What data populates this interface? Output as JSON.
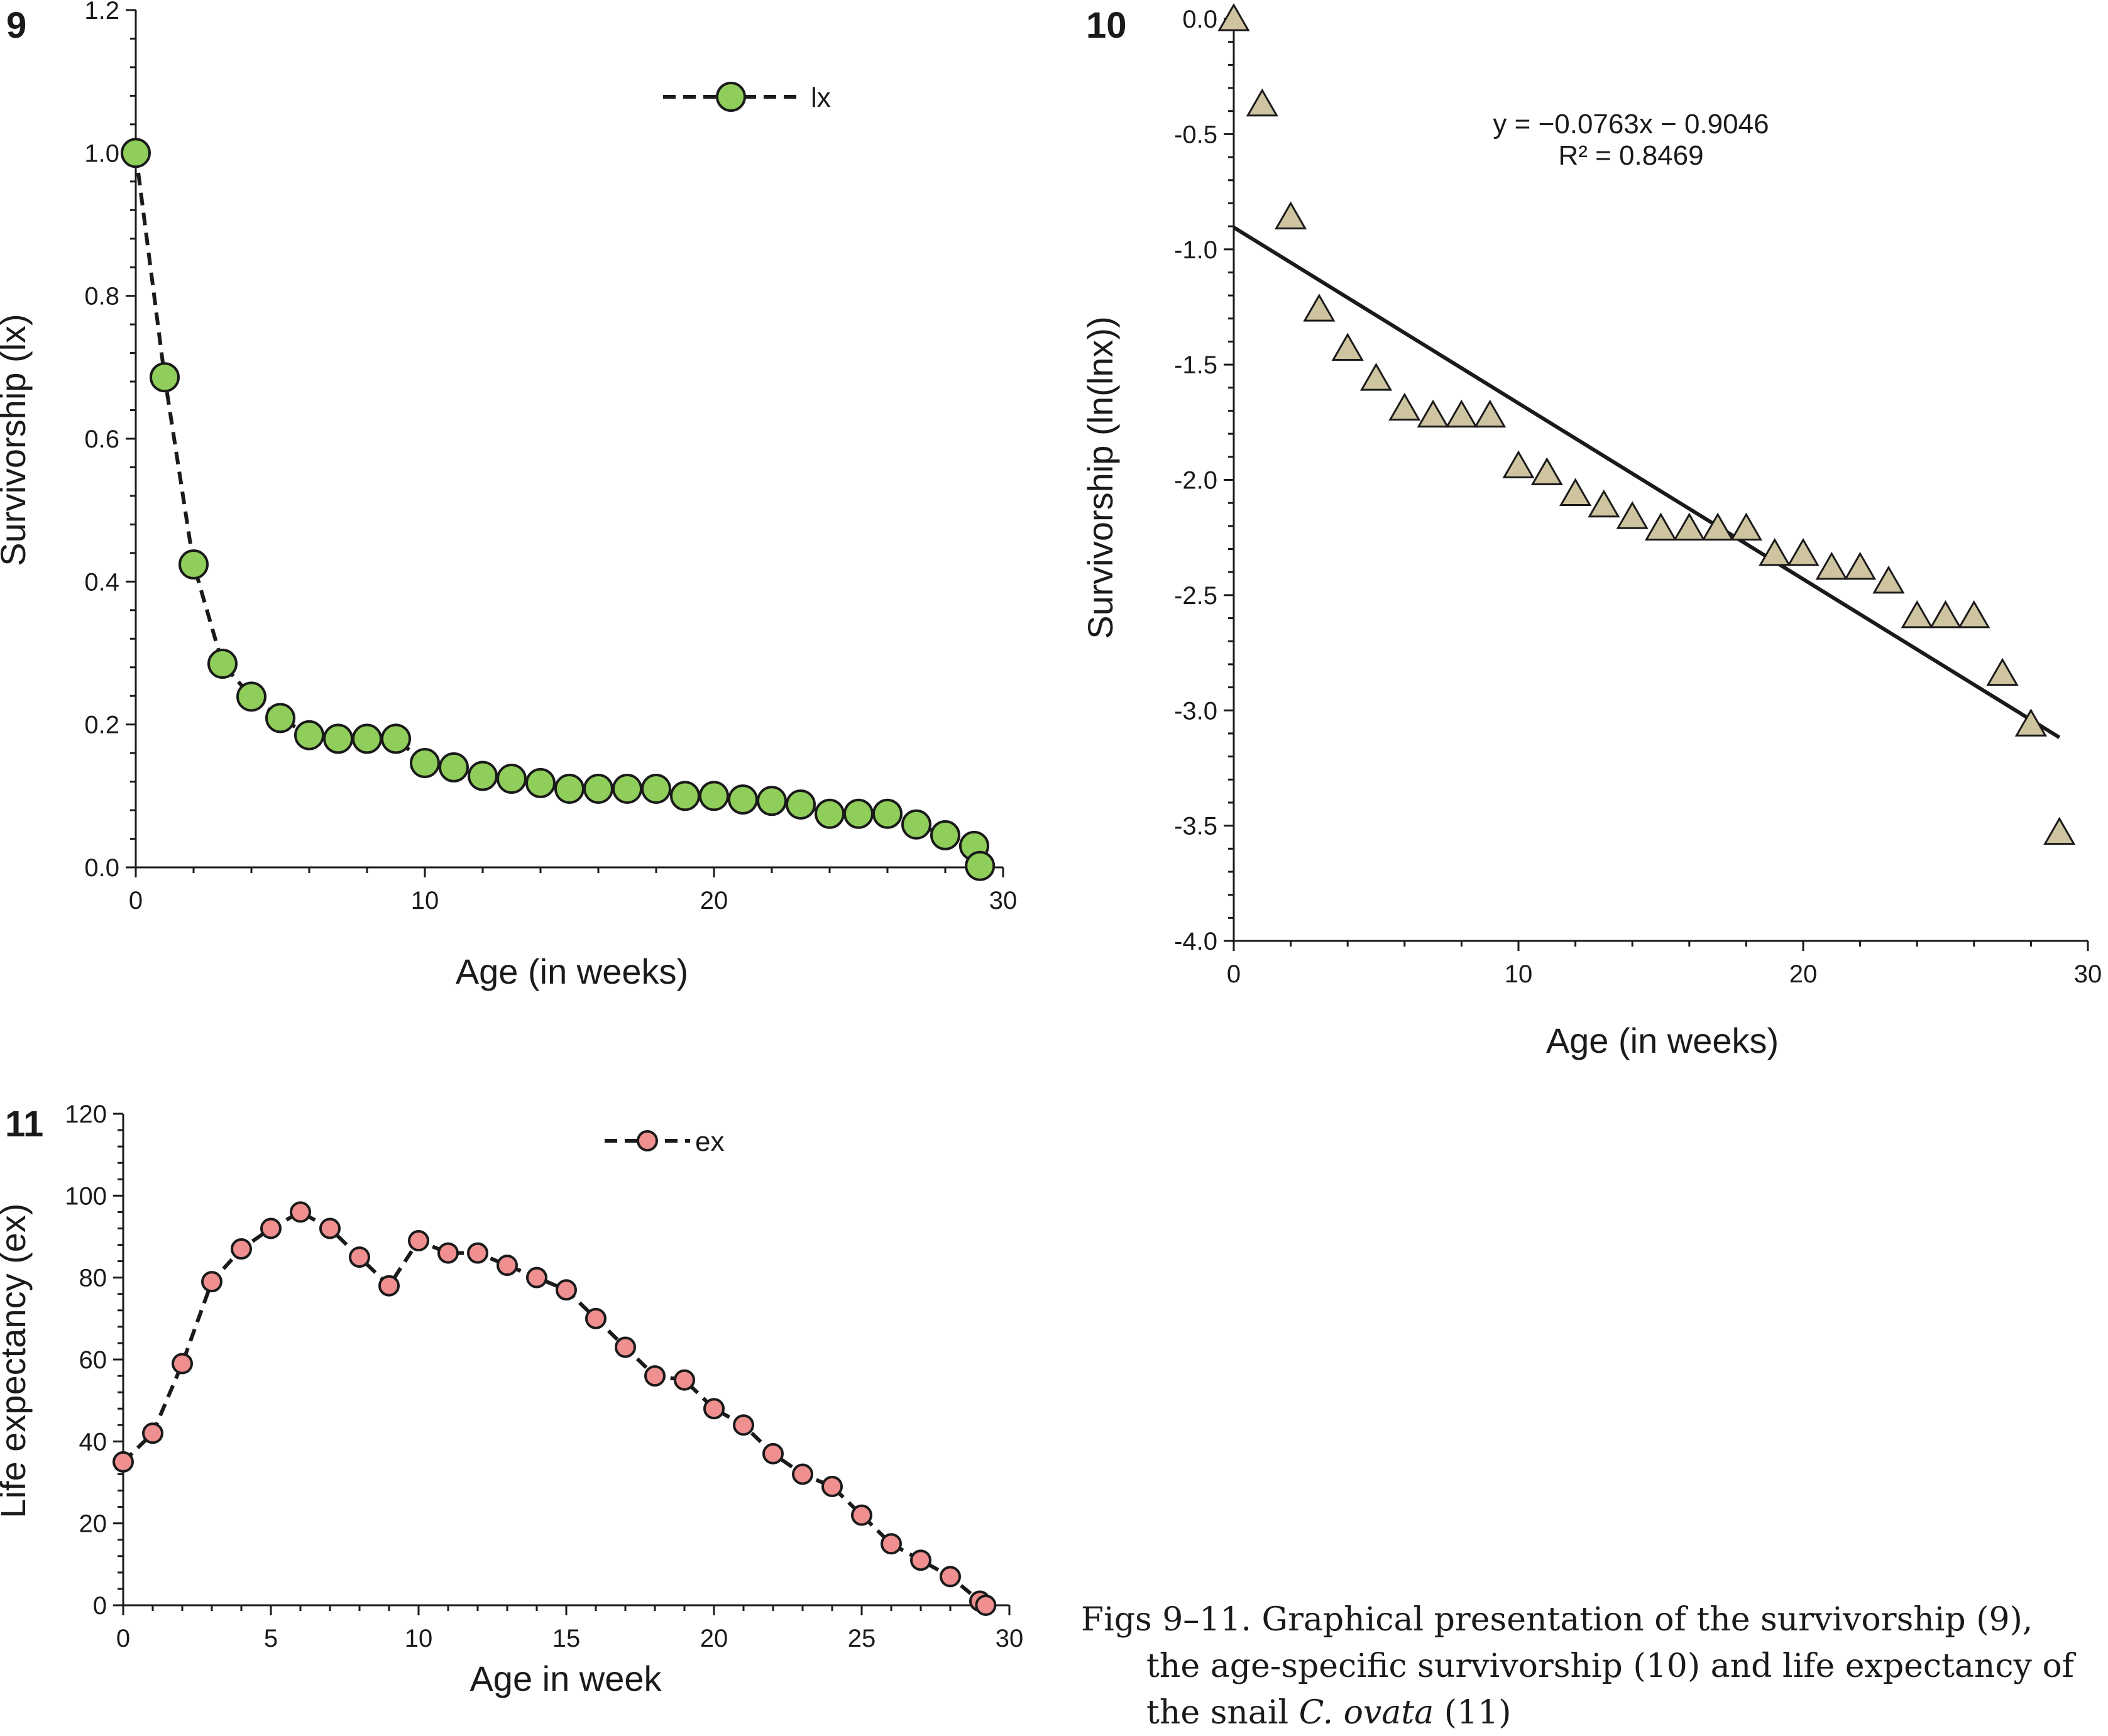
{
  "caption": {
    "line1": "Figs 9–11. Graphical presentation of the survivorship (9),",
    "line2": "the age-specific survivorship (10) and life expectancy of",
    "line3_prefix": "the snail ",
    "line3_species": "C. ovata",
    "line3_suffix": " (11)"
  },
  "chart_data": [
    {
      "panel": "9",
      "type": "line",
      "xlabel": "Age (in weeks)",
      "ylabel": "Survivorship (lx)",
      "xlim": [
        0,
        30
      ],
      "ylim": [
        0,
        1.2
      ],
      "xticks": [
        "0",
        "10",
        "20",
        "30"
      ],
      "yticks": [
        "0.0",
        "0.2",
        "0.4",
        "0.6",
        "0.8",
        "1.0",
        "1.2"
      ],
      "legend_position": "top-right",
      "marker_color": "#8fce5a",
      "line_color": "#1a1a1a",
      "series": [
        {
          "name": "lx",
          "x": [
            0,
            1,
            2,
            3,
            4,
            5,
            6,
            7,
            8,
            9,
            10,
            11,
            12,
            13,
            14,
            15,
            16,
            17,
            18,
            19,
            20,
            21,
            22,
            23,
            24,
            25,
            26,
            27,
            28,
            29,
            29.2
          ],
          "y": [
            1.0,
            0.686,
            0.424,
            0.285,
            0.239,
            0.209,
            0.185,
            0.18,
            0.18,
            0.18,
            0.146,
            0.14,
            0.128,
            0.124,
            0.118,
            0.11,
            0.11,
            0.11,
            0.11,
            0.1,
            0.1,
            0.095,
            0.093,
            0.088,
            0.075,
            0.075,
            0.075,
            0.06,
            0.045,
            0.03,
            0.002
          ]
        }
      ]
    },
    {
      "panel": "10",
      "type": "scatter",
      "xlabel": "Age (in weeks)",
      "ylabel": "Survivorship (ln(lnx))",
      "xlim": [
        0,
        30
      ],
      "ylim": [
        -4.0,
        0.0
      ],
      "xticks": [
        "0",
        "10",
        "20",
        "30"
      ],
      "yticks": [
        "0.0",
        "-0.5",
        "-1.0",
        "-1.5",
        "-2.0",
        "-2.5",
        "-3.0",
        "-3.5",
        "-4.0"
      ],
      "marker_color": "#cfc4a0",
      "equation": "y = −0.0763x − 0.9046",
      "r_squared": "R² = 0.8469",
      "trendline": {
        "slope": -0.0763,
        "intercept": -0.9046,
        "x_range": [
          0,
          29
        ]
      },
      "series": [
        {
          "x": [
            0,
            1,
            2,
            3,
            4,
            5,
            6,
            7,
            8,
            9,
            10,
            11,
            12,
            13,
            14,
            15,
            16,
            17,
            18,
            19,
            20,
            21,
            22,
            23,
            24,
            25,
            26,
            27,
            28,
            29
          ],
          "y": [
            0.0,
            -0.37,
            -0.86,
            -1.26,
            -1.43,
            -1.56,
            -1.69,
            -1.72,
            -1.72,
            -1.72,
            -1.94,
            -1.97,
            -2.06,
            -2.11,
            -2.16,
            -2.21,
            -2.21,
            -2.21,
            -2.21,
            -2.32,
            -2.32,
            -2.38,
            -2.38,
            -2.44,
            -2.59,
            -2.59,
            -2.59,
            -2.84,
            -3.06,
            -3.53
          ]
        }
      ]
    },
    {
      "panel": "11",
      "type": "line",
      "xlabel": "Age in week",
      "ylabel": "Life expectancy (ex)",
      "xlim": [
        0,
        30
      ],
      "ylim": [
        0,
        120
      ],
      "xticks": [
        "0",
        "5",
        "10",
        "15",
        "20",
        "25",
        "30"
      ],
      "yticks": [
        "0",
        "20",
        "40",
        "60",
        "80",
        "100",
        "120"
      ],
      "legend_position": "top-center",
      "marker_color": "#ef8f8f",
      "line_color": "#1a1a1a",
      "series": [
        {
          "name": "ex",
          "x": [
            0,
            1,
            2,
            3,
            4,
            5,
            6,
            7,
            8,
            9,
            10,
            11,
            12,
            13,
            14,
            15,
            16,
            17,
            18,
            19,
            20,
            21,
            22,
            23,
            24,
            25,
            26,
            27,
            28,
            29,
            29.2
          ],
          "y": [
            35,
            42,
            59,
            79,
            87,
            92,
            96,
            92,
            85,
            78,
            89,
            86,
            86,
            83,
            80,
            77,
            70,
            63,
            56,
            55,
            48,
            44,
            37,
            32,
            29,
            22,
            15,
            11,
            7,
            1,
            0
          ]
        }
      ]
    }
  ]
}
